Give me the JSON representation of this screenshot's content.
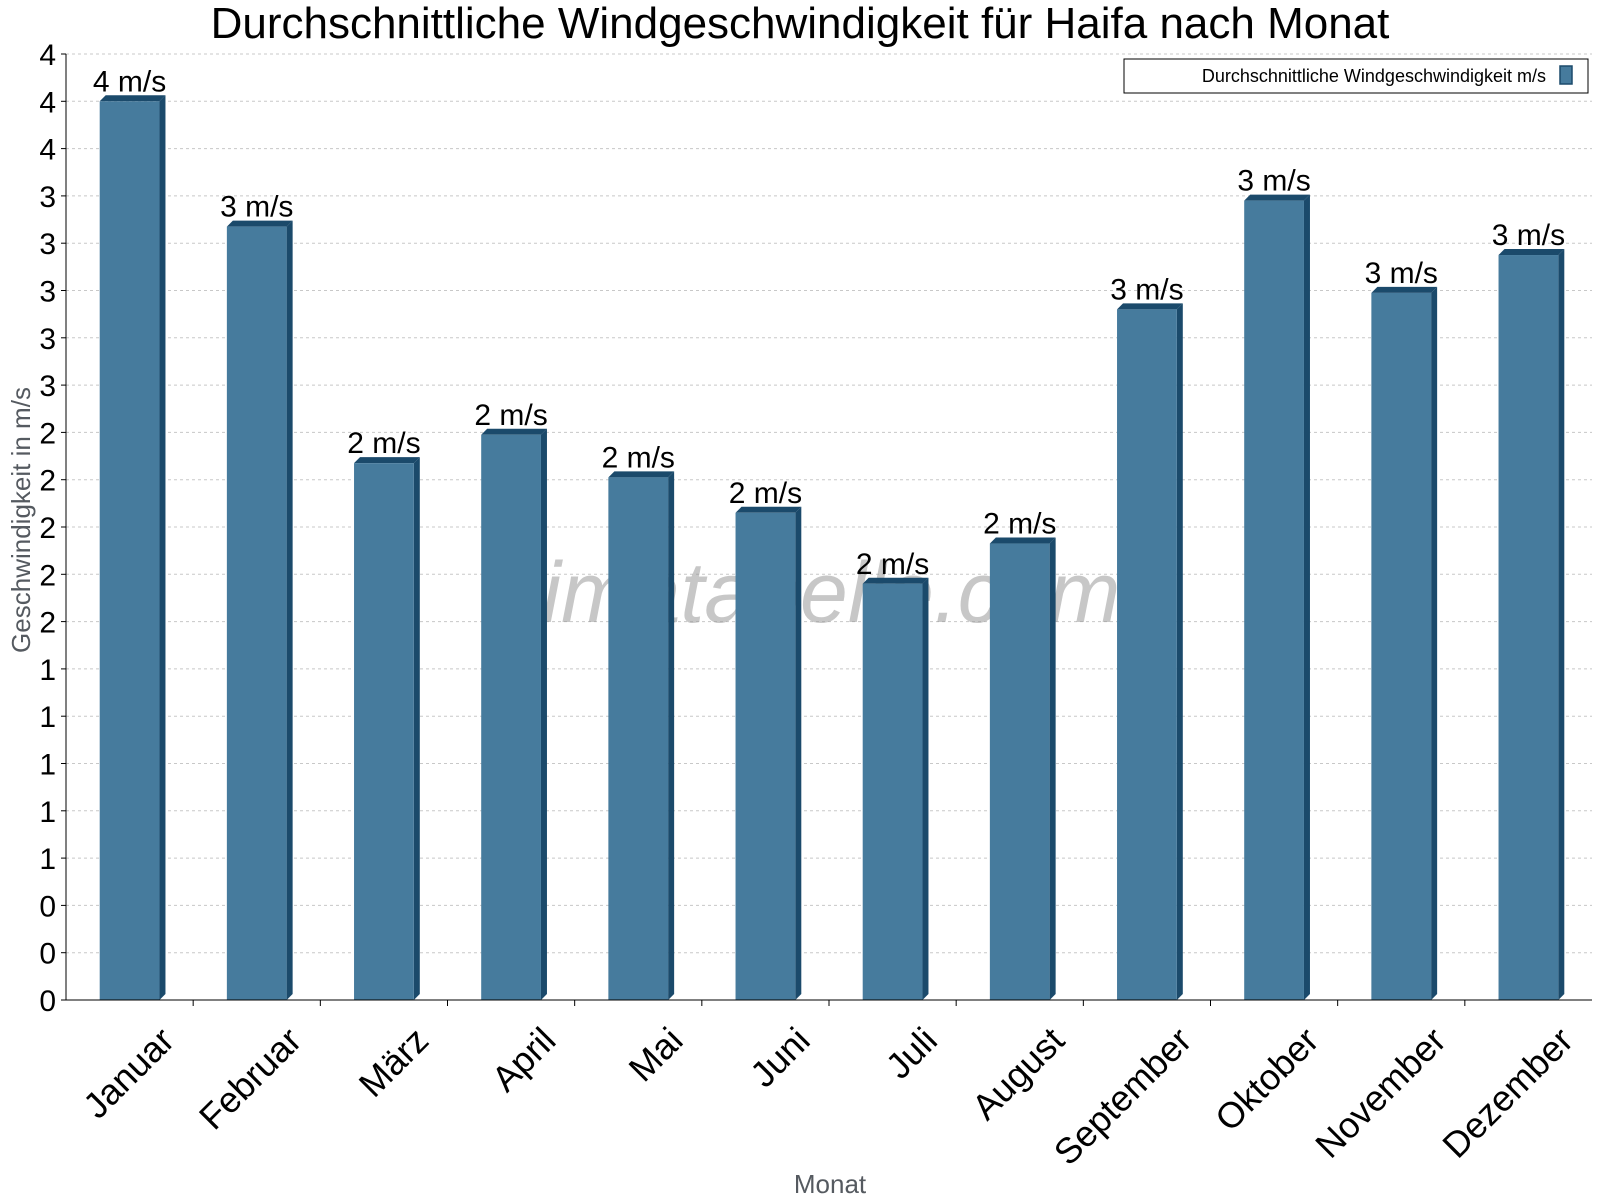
{
  "chart_data": {
    "type": "bar",
    "title": "Durchschnittliche Windgeschwindigkeit für Haifa nach Monat",
    "xlabel": "Monat",
    "ylabel": "Geschwindigkeit in m/s",
    "categories": [
      "Januar",
      "Februar",
      "März",
      "April",
      "Mai",
      "Juni",
      "Juli",
      "August",
      "September",
      "Oktober",
      "November",
      "Dezember"
    ],
    "series": [
      {
        "name": "Durchschnittliche Windgeschwindigkeit m/s",
        "color": "#467b9d",
        "values": [
          3.8,
          3.27,
          2.27,
          2.39,
          2.21,
          2.06,
          1.76,
          1.93,
          2.92,
          3.38,
          2.99,
          3.15
        ],
        "labels": [
          "4 m/s",
          "3 m/s",
          "2 m/s",
          "2 m/s",
          "2 m/s",
          "2 m/s",
          "2 m/s",
          "2 m/s",
          "3 m/s",
          "3 m/s",
          "3 m/s",
          "3 m/s"
        ]
      }
    ],
    "ylim": [
      0,
      4.0
    ],
    "ytick_step": 0.2,
    "ytick_labels": [
      "0",
      "0",
      "0",
      "1",
      "1",
      "1",
      "1",
      "1",
      "2",
      "2",
      "2",
      "2",
      "2",
      "3",
      "3",
      "3",
      "3",
      "3",
      "4",
      "4",
      "4"
    ],
    "grid": true,
    "legend_position": "top-right",
    "watermark": "klimatabelle.com"
  }
}
